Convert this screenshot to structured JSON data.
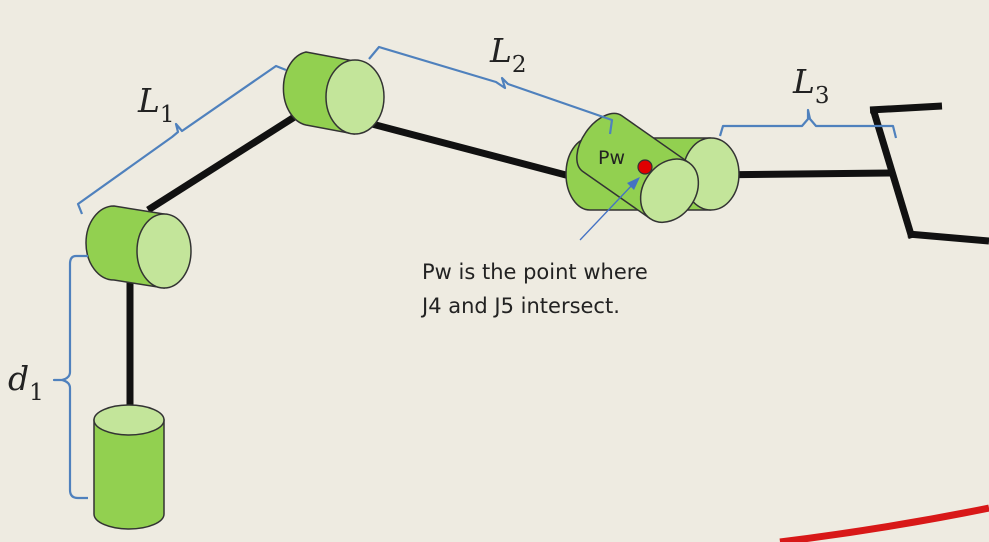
{
  "labels": {
    "L1": {
      "main": "L",
      "sub": "1"
    },
    "L2": {
      "main": "L",
      "sub": "2"
    },
    "L3": {
      "main": "L",
      "sub": "3"
    },
    "d1": {
      "main": "d",
      "sub": "1"
    }
  },
  "pw_label": "Pw",
  "annotation": {
    "line1": "Pw is the point where",
    "line2": "J4 and J5 intersect."
  },
  "colors": {
    "background": "#eeebe1",
    "joint_body": "#92d050",
    "joint_face": "#c3e59a",
    "joint_outline": "#333333",
    "link": "#111111",
    "bracket": "#4f81bd",
    "pw_point": "#e00000",
    "arrow": "#4472c4",
    "accent_line": "#d81818"
  }
}
